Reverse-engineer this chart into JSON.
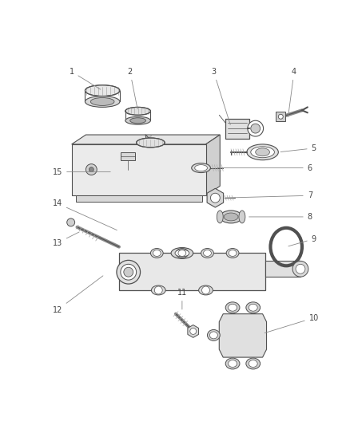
{
  "bg_color": "#ffffff",
  "lc": "#505050",
  "lc_light": "#888888",
  "figsize": [
    4.38,
    5.33
  ],
  "dpi": 100,
  "label_fs": 7.0,
  "label_color": "#444444"
}
